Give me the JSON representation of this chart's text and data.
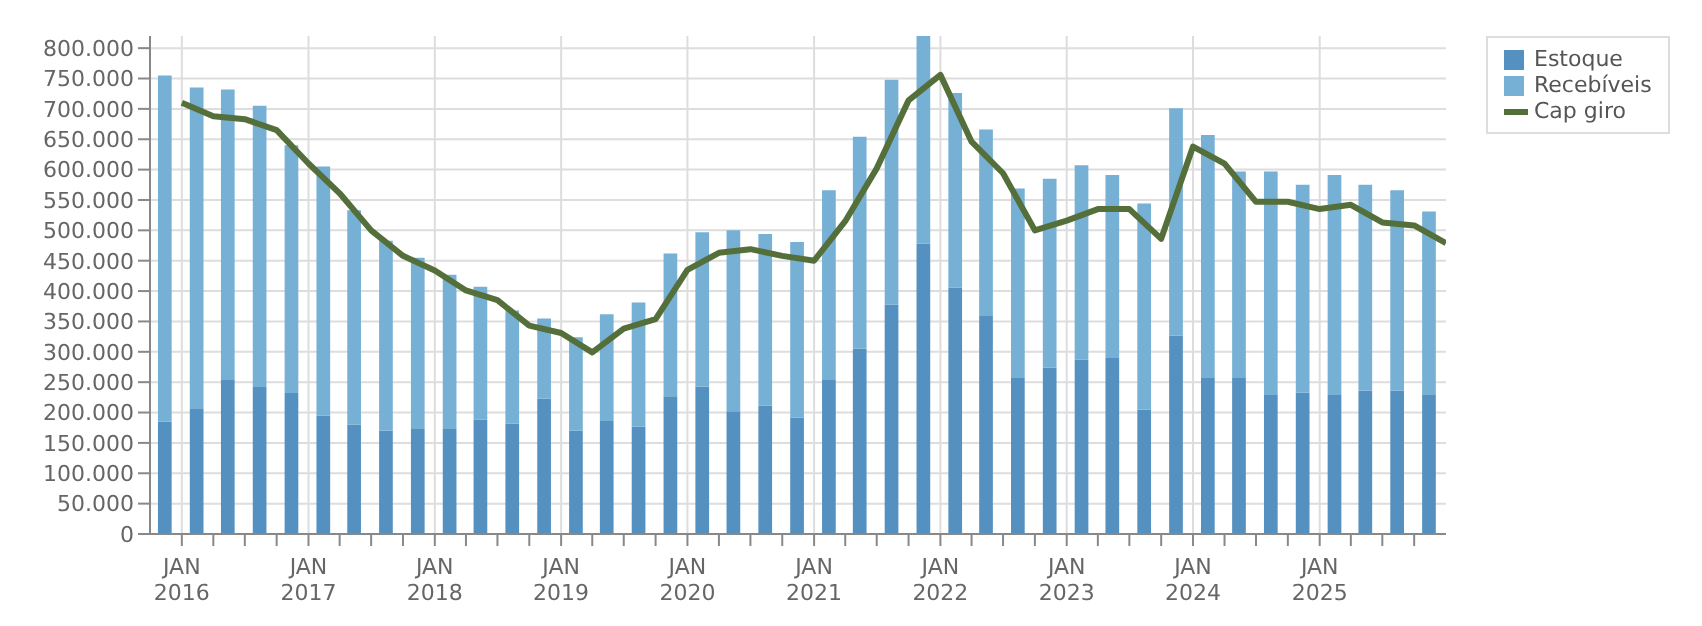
{
  "chart_data": {
    "type": "bar",
    "stacked": true,
    "x": [
      "2015-11-15",
      "2016-02-15",
      "2016-05-15",
      "2016-08-15",
      "2016-11-15",
      "2017-02-15",
      "2017-05-15",
      "2017-08-15",
      "2017-11-15",
      "2018-02-15",
      "2018-05-15",
      "2018-08-15",
      "2018-11-15",
      "2019-02-15",
      "2019-05-15",
      "2019-08-15",
      "2019-11-15",
      "2020-02-15",
      "2020-05-15",
      "2020-08-15",
      "2020-11-15",
      "2021-02-15",
      "2021-05-15",
      "2021-08-15",
      "2021-11-15",
      "2022-02-15",
      "2022-05-15",
      "2022-08-15",
      "2022-11-15",
      "2023-02-15",
      "2023-05-15",
      "2023-08-15",
      "2023-11-15",
      "2024-02-15",
      "2024-05-15",
      "2024-08-15",
      "2024-11-15",
      "2025-02-15",
      "2025-05-15",
      "2025-08-15",
      "2025-11-15"
    ],
    "series": [
      {
        "name": "Estoque",
        "color": "#5591c0",
        "values": [
          185000,
          207000,
          255000,
          242000,
          232000,
          195000,
          180000,
          170000,
          173000,
          173000,
          188000,
          182000,
          223000,
          170000,
          186000,
          177000,
          227000,
          243000,
          202000,
          211000,
          192000,
          255000,
          305000,
          378000,
          478000,
          406000,
          359000,
          258000,
          274000,
          287000,
          290000,
          205000,
          327000,
          258000,
          258000,
          230000,
          233000,
          230000,
          236000,
          236000,
          230000
        ]
      },
      {
        "name": "Recebíveis",
        "color": "#76b0d5",
        "values": [
          570000,
          528000,
          477000,
          463000,
          408000,
          410000,
          353000,
          313000,
          282000,
          254000,
          219000,
          186000,
          132000,
          154000,
          176000,
          204000,
          235000,
          254000,
          298000,
          283000,
          289000,
          311000,
          349000,
          370000,
          343000,
          320000,
          307000,
          311000,
          311000,
          320000,
          301000,
          339000,
          374000,
          399000,
          339000,
          367000,
          342000,
          361000,
          339000,
          330000,
          301000
        ]
      },
      {
        "name": "Cap giro",
        "type": "line",
        "color": "#556f3a",
        "x": [
          "2016-01-01",
          "2016-04-01",
          "2016-07-01",
          "2016-10-01",
          "2017-01-01",
          "2017-04-01",
          "2017-07-01",
          "2017-10-01",
          "2018-01-01",
          "2018-04-01",
          "2018-07-01",
          "2018-10-01",
          "2019-01-01",
          "2019-04-01",
          "2019-07-01",
          "2019-10-01",
          "2020-01-01",
          "2020-04-01",
          "2020-07-01",
          "2020-10-01",
          "2021-01-01",
          "2021-04-01",
          "2021-07-01",
          "2021-10-01",
          "2022-01-01",
          "2022-04-01",
          "2022-07-01",
          "2022-10-01",
          "2023-01-01",
          "2023-04-01",
          "2023-07-01",
          "2023-10-01",
          "2024-01-01",
          "2024-04-01",
          "2024-07-01",
          "2024-10-01",
          "2025-01-01",
          "2025-04-01",
          "2025-07-01",
          "2025-10-01",
          "2026-01-01"
        ],
        "values": [
          710000,
          688000,
          683000,
          665000,
          610000,
          561000,
          500000,
          458000,
          434000,
          401000,
          385000,
          343000,
          331000,
          299000,
          338000,
          354000,
          435000,
          463000,
          469000,
          458000,
          450000,
          515000,
          602000,
          714000,
          756000,
          646000,
          594000,
          500000,
          516000,
          535000,
          535000,
          486000,
          638000,
          610000,
          547000,
          547000,
          535000,
          542000,
          513000,
          508000,
          479000
        ]
      }
    ],
    "xlim": [
      "2015-10-01",
      "2026-01-01"
    ],
    "xticks": [
      {
        "value": "2016-01-01",
        "label": "JAN 2016"
      },
      {
        "value": "2016-04-01",
        "label": null
      },
      {
        "value": "2016-07-01",
        "label": null
      },
      {
        "value": "2016-10-01",
        "label": null
      },
      {
        "value": "2017-01-01",
        "label": "JAN 2017"
      },
      {
        "value": "2017-04-01",
        "label": null
      },
      {
        "value": "2017-07-01",
        "label": null
      },
      {
        "value": "2017-10-01",
        "label": null
      },
      {
        "value": "2018-01-01",
        "label": "JAN 2018"
      },
      {
        "value": "2018-04-01",
        "label": null
      },
      {
        "value": "2018-07-01",
        "label": null
      },
      {
        "value": "2018-10-01",
        "label": null
      },
      {
        "value": "2019-01-01",
        "label": "JAN 2019"
      },
      {
        "value": "2019-04-01",
        "label": null
      },
      {
        "value": "2019-07-01",
        "label": null
      },
      {
        "value": "2019-10-01",
        "label": null
      },
      {
        "value": "2020-01-01",
        "label": "JAN 2020"
      },
      {
        "value": "2020-04-01",
        "label": null
      },
      {
        "value": "2020-07-01",
        "label": null
      },
      {
        "value": "2020-10-01",
        "label": null
      },
      {
        "value": "2021-01-01",
        "label": "JAN 2021"
      },
      {
        "value": "2021-04-01",
        "label": null
      },
      {
        "value": "2021-07-01",
        "label": null
      },
      {
        "value": "2021-10-01",
        "label": null
      },
      {
        "value": "2022-01-01",
        "label": "JAN 2022"
      },
      {
        "value": "2022-04-01",
        "label": null
      },
      {
        "value": "2022-07-01",
        "label": null
      },
      {
        "value": "2022-10-01",
        "label": null
      },
      {
        "value": "2023-01-01",
        "label": "JAN 2023"
      },
      {
        "value": "2023-04-01",
        "label": null
      },
      {
        "value": "2023-07-01",
        "label": null
      },
      {
        "value": "2023-10-01",
        "label": null
      },
      {
        "value": "2024-01-01",
        "label": "JAN 2024"
      },
      {
        "value": "2024-04-01",
        "label": null
      },
      {
        "value": "2024-07-01",
        "label": null
      },
      {
        "value": "2024-10-01",
        "label": null
      },
      {
        "value": "2025-01-01",
        "label": "JAN 2025"
      },
      {
        "value": "2025-04-01",
        "label": null
      },
      {
        "value": "2025-07-01",
        "label": null
      },
      {
        "value": "2025-10-01",
        "label": null
      }
    ],
    "ylim": [
      0,
      820000
    ],
    "yticks": [
      {
        "value": 0,
        "label": "0"
      },
      {
        "value": 50000,
        "label": "50.000"
      },
      {
        "value": 100000,
        "label": "100.000"
      },
      {
        "value": 150000,
        "label": "150.000"
      },
      {
        "value": 200000,
        "label": "200.000"
      },
      {
        "value": 250000,
        "label": "250.000"
      },
      {
        "value": 300000,
        "label": "300.000"
      },
      {
        "value": 350000,
        "label": "350.000"
      },
      {
        "value": 400000,
        "label": "400.000"
      },
      {
        "value": 450000,
        "label": "450.000"
      },
      {
        "value": 500000,
        "label": "500.000"
      },
      {
        "value": 550000,
        "label": "550.000"
      },
      {
        "value": 600000,
        "label": "600.000"
      },
      {
        "value": 650000,
        "label": "650.000"
      },
      {
        "value": 700000,
        "label": "700.000"
      },
      {
        "value": 750000,
        "label": "750.000"
      },
      {
        "value": 800000,
        "label": "800.000"
      }
    ],
    "grid": true,
    "legend": "right",
    "marker": "none"
  }
}
